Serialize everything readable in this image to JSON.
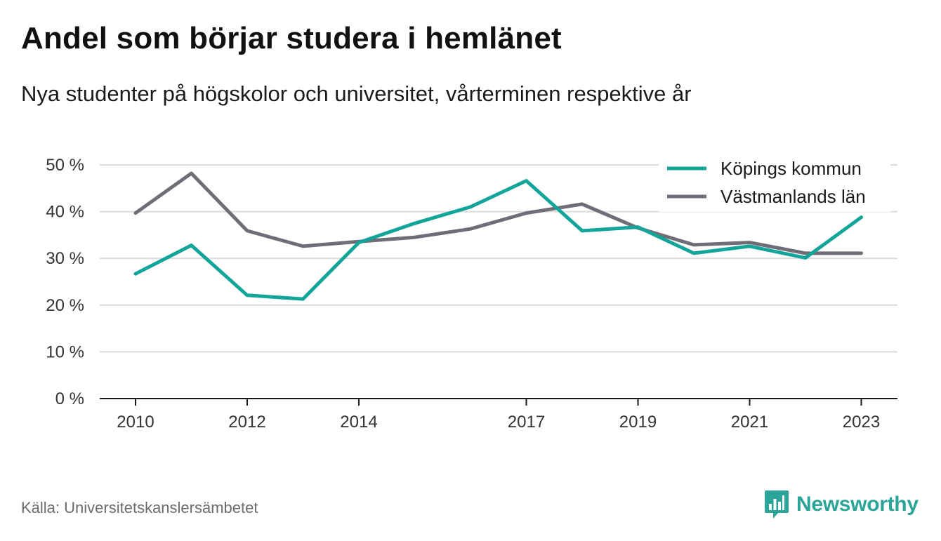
{
  "title": "Andel som börjar studera i hemlänet",
  "subtitle": "Nya studenter på högskolor och universitet, vårterminen respektive år",
  "source": "Källa: Universitetskanslersämbetet",
  "brand": {
    "name": "Newsworthy",
    "icon": "newsworthy-logo-icon",
    "color": "#2ba59a"
  },
  "chart_data": {
    "type": "line",
    "x": [
      2010,
      2011,
      2012,
      2013,
      2014,
      2015,
      2016,
      2017,
      2018,
      2019,
      2020,
      2021,
      2022,
      2023
    ],
    "x_tick_labels": [
      "2010",
      "2012",
      "2014",
      "2017",
      "2019",
      "2021",
      "2023"
    ],
    "y_ticks": [
      0,
      10,
      20,
      30,
      40,
      50
    ],
    "y_tick_labels": [
      "0 %",
      "10 %",
      "20 %",
      "30 %",
      "40 %",
      "50 %"
    ],
    "ylim": [
      0,
      50
    ],
    "grid": true,
    "legend_position": "top-right",
    "series": [
      {
        "name": "Köpings kommun",
        "color": "#13a599",
        "values": [
          26.7,
          32.8,
          22.1,
          21.3,
          33.4,
          37.5,
          41.0,
          46.6,
          35.9,
          36.7,
          31.1,
          32.6,
          30.1,
          38.8
        ]
      },
      {
        "name": "Västmanlands län",
        "color": "#6f6e78",
        "values": [
          39.7,
          48.2,
          35.9,
          32.6,
          33.6,
          34.5,
          36.3,
          39.7,
          41.6,
          36.5,
          32.9,
          33.4,
          31.1,
          31.1
        ]
      }
    ]
  }
}
